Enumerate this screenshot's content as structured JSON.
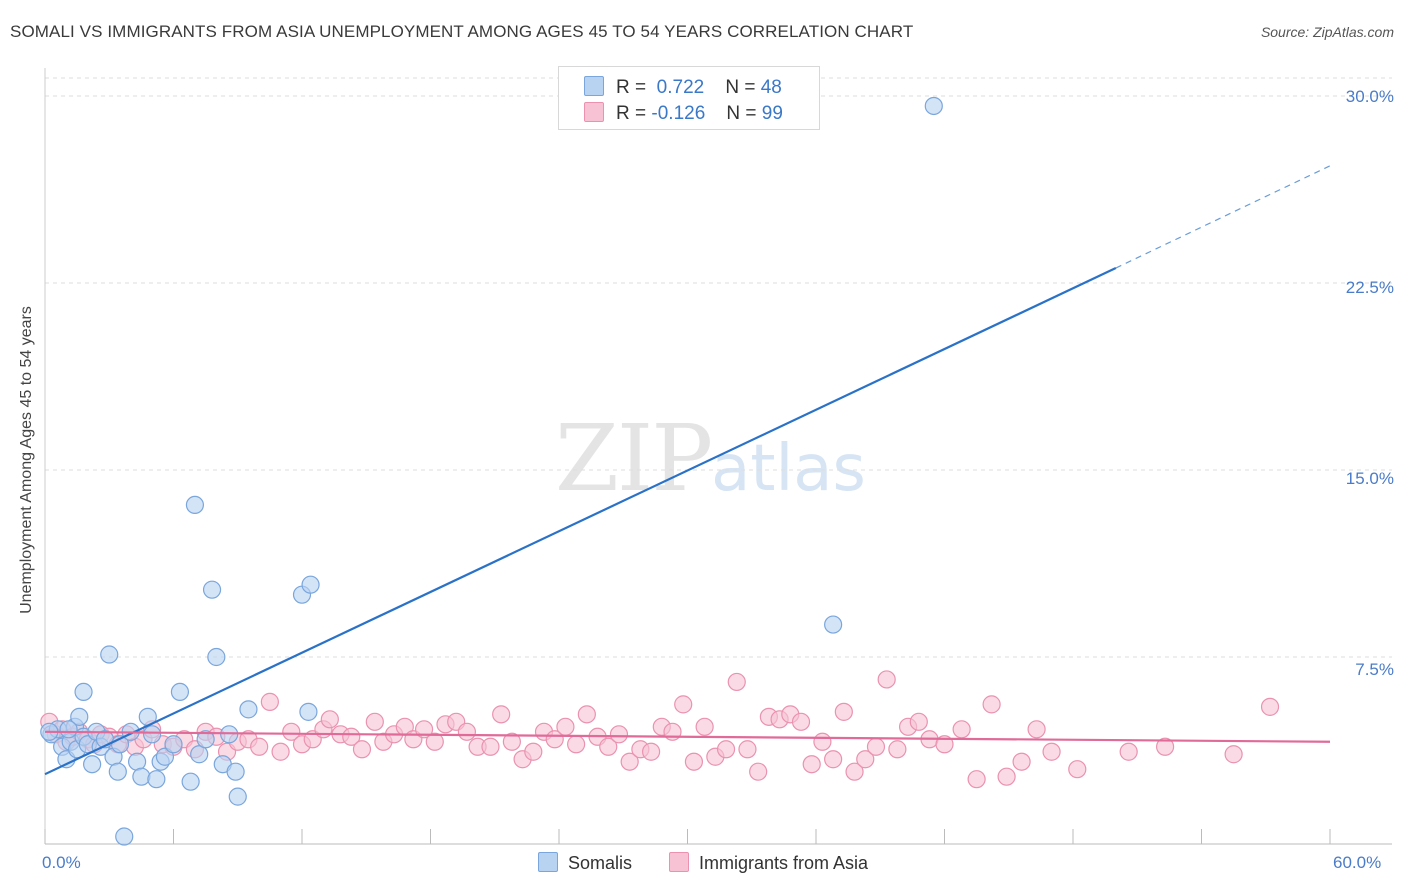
{
  "header": {
    "title": "SOMALI VS IMMIGRANTS FROM ASIA UNEMPLOYMENT AMONG AGES 45 TO 54 YEARS CORRELATION CHART",
    "source": "Source: ZipAtlas.com"
  },
  "watermark": {
    "zip": "ZIP",
    "atlas": "atlas"
  },
  "legend": {
    "somalis": {
      "r_label": "R =",
      "r_value": "0.722",
      "n_label": "N =",
      "n_value": "48"
    },
    "asia": {
      "r_label": "R =",
      "r_value": "-0.126",
      "n_label": "N =",
      "n_value": "99"
    }
  },
  "bottom_legend": {
    "somalis": "Somalis",
    "asia": "Immigrants from Asia"
  },
  "axes": {
    "ylabel": "Unemployment Among Ages 45 to 54 years",
    "y_ticks": [
      "30.0%",
      "22.5%",
      "15.0%",
      "7.5%"
    ],
    "x_ticks": [
      "0.0%",
      "60.0%"
    ]
  },
  "colors": {
    "somalis_fill": "#b8d2f2",
    "somalis_stroke": "#7aa6dc",
    "somalis_line": "#2a72c8",
    "asia_fill": "#f7c3d4",
    "asia_stroke": "#ea92b0",
    "asia_line": "#e06a98"
  },
  "chart_data": {
    "type": "scatter",
    "xlim": [
      0,
      60
    ],
    "ylim": [
      0,
      30
    ],
    "y_gridlines": [
      7.5,
      15,
      22.5,
      30
    ],
    "series": [
      {
        "name": "Somalis",
        "trend": {
          "x0": 0,
          "y0": 2.8,
          "x1": 50,
          "y1": 23.1,
          "dashed_to_x": 60,
          "dashed_to_y": 27.2
        },
        "points": [
          [
            0.3,
            4.4
          ],
          [
            0.6,
            4.6
          ],
          [
            0.8,
            3.9
          ],
          [
            1.0,
            3.4
          ],
          [
            1.2,
            4.1
          ],
          [
            1.4,
            4.7
          ],
          [
            1.5,
            3.8
          ],
          [
            1.6,
            5.1
          ],
          [
            1.8,
            4.3
          ],
          [
            1.8,
            6.1
          ],
          [
            2.0,
            4.0
          ],
          [
            2.2,
            3.2
          ],
          [
            2.4,
            4.5
          ],
          [
            2.6,
            3.9
          ],
          [
            2.8,
            4.2
          ],
          [
            3.0,
            7.6
          ],
          [
            3.2,
            3.5
          ],
          [
            3.4,
            2.9
          ],
          [
            3.5,
            4.0
          ],
          [
            3.7,
            0.3
          ],
          [
            4.0,
            4.5
          ],
          [
            4.3,
            3.3
          ],
          [
            4.5,
            2.7
          ],
          [
            4.8,
            5.1
          ],
          [
            5.0,
            4.4
          ],
          [
            5.2,
            2.6
          ],
          [
            5.4,
            3.3
          ],
          [
            5.6,
            3.5
          ],
          [
            6.0,
            4.0
          ],
          [
            6.3,
            6.1
          ],
          [
            6.8,
            2.5
          ],
          [
            7.0,
            13.6
          ],
          [
            7.2,
            3.6
          ],
          [
            7.5,
            4.2
          ],
          [
            7.8,
            10.2
          ],
          [
            8.0,
            7.5
          ],
          [
            8.3,
            3.2
          ],
          [
            8.6,
            4.4
          ],
          [
            8.9,
            2.9
          ],
          [
            9.0,
            1.9
          ],
          [
            9.5,
            5.4
          ],
          [
            12.0,
            10.0
          ],
          [
            12.3,
            5.3
          ],
          [
            12.4,
            10.4
          ],
          [
            36.8,
            8.8
          ],
          [
            41.5,
            29.6
          ],
          [
            0.2,
            4.5
          ],
          [
            1.1,
            4.6
          ]
        ]
      },
      {
        "name": "Immigrants from Asia",
        "trend": {
          "x0": 0,
          "y0": 4.5,
          "x1": 60,
          "y1": 4.1
        },
        "points": [
          [
            0.2,
            4.9
          ],
          [
            0.5,
            4.4
          ],
          [
            0.8,
            4.6
          ],
          [
            1.0,
            4.1
          ],
          [
            1.3,
            4.3
          ],
          [
            1.6,
            4.5
          ],
          [
            2.0,
            4.2
          ],
          [
            2.3,
            4.0
          ],
          [
            2.6,
            4.4
          ],
          [
            3.0,
            4.3
          ],
          [
            3.4,
            4.0
          ],
          [
            3.8,
            4.4
          ],
          [
            4.2,
            3.9
          ],
          [
            4.6,
            4.2
          ],
          [
            5.0,
            4.6
          ],
          [
            5.5,
            4.0
          ],
          [
            6.0,
            3.9
          ],
          [
            6.5,
            4.2
          ],
          [
            7.0,
            3.8
          ],
          [
            7.5,
            4.5
          ],
          [
            8.0,
            4.3
          ],
          [
            8.5,
            3.7
          ],
          [
            9.0,
            4.1
          ],
          [
            9.5,
            4.2
          ],
          [
            10.0,
            3.9
          ],
          [
            10.5,
            5.7
          ],
          [
            11.0,
            3.7
          ],
          [
            11.5,
            4.5
          ],
          [
            12.0,
            4.0
          ],
          [
            12.5,
            4.2
          ],
          [
            13.0,
            4.6
          ],
          [
            13.3,
            5.0
          ],
          [
            13.8,
            4.4
          ],
          [
            14.3,
            4.3
          ],
          [
            14.8,
            3.8
          ],
          [
            15.4,
            4.9
          ],
          [
            15.8,
            4.1
          ],
          [
            16.3,
            4.4
          ],
          [
            16.8,
            4.7
          ],
          [
            17.2,
            4.2
          ],
          [
            17.7,
            4.6
          ],
          [
            18.2,
            4.1
          ],
          [
            18.7,
            4.8
          ],
          [
            19.2,
            4.9
          ],
          [
            19.7,
            4.5
          ],
          [
            20.2,
            3.9
          ],
          [
            20.8,
            3.9
          ],
          [
            21.3,
            5.2
          ],
          [
            21.8,
            4.1
          ],
          [
            22.3,
            3.4
          ],
          [
            22.8,
            3.7
          ],
          [
            23.3,
            4.5
          ],
          [
            23.8,
            4.2
          ],
          [
            24.3,
            4.7
          ],
          [
            24.8,
            4.0
          ],
          [
            25.3,
            5.2
          ],
          [
            25.8,
            4.3
          ],
          [
            26.3,
            3.9
          ],
          [
            26.8,
            4.4
          ],
          [
            27.3,
            3.3
          ],
          [
            27.8,
            3.8
          ],
          [
            28.3,
            3.7
          ],
          [
            28.8,
            4.7
          ],
          [
            29.3,
            4.5
          ],
          [
            29.8,
            5.6
          ],
          [
            30.3,
            3.3
          ],
          [
            30.8,
            4.7
          ],
          [
            31.3,
            3.5
          ],
          [
            31.8,
            3.8
          ],
          [
            32.3,
            6.5
          ],
          [
            32.8,
            3.8
          ],
          [
            33.3,
            2.9
          ],
          [
            33.8,
            5.1
          ],
          [
            34.3,
            5.0
          ],
          [
            34.8,
            5.2
          ],
          [
            35.3,
            4.9
          ],
          [
            35.8,
            3.2
          ],
          [
            36.3,
            4.1
          ],
          [
            36.8,
            3.4
          ],
          [
            37.3,
            5.3
          ],
          [
            37.8,
            2.9
          ],
          [
            38.3,
            3.4
          ],
          [
            38.8,
            3.9
          ],
          [
            39.3,
            6.6
          ],
          [
            39.8,
            3.8
          ],
          [
            40.3,
            4.7
          ],
          [
            40.8,
            4.9
          ],
          [
            41.3,
            4.2
          ],
          [
            42.0,
            4.0
          ],
          [
            42.8,
            4.6
          ],
          [
            43.5,
            2.6
          ],
          [
            44.2,
            5.6
          ],
          [
            44.9,
            2.7
          ],
          [
            45.6,
            3.3
          ],
          [
            46.3,
            4.6
          ],
          [
            47.0,
            3.7
          ],
          [
            48.2,
            3.0
          ],
          [
            50.6,
            3.7
          ],
          [
            52.3,
            3.9
          ],
          [
            55.5,
            3.6
          ],
          [
            57.2,
            5.5
          ]
        ]
      }
    ]
  }
}
